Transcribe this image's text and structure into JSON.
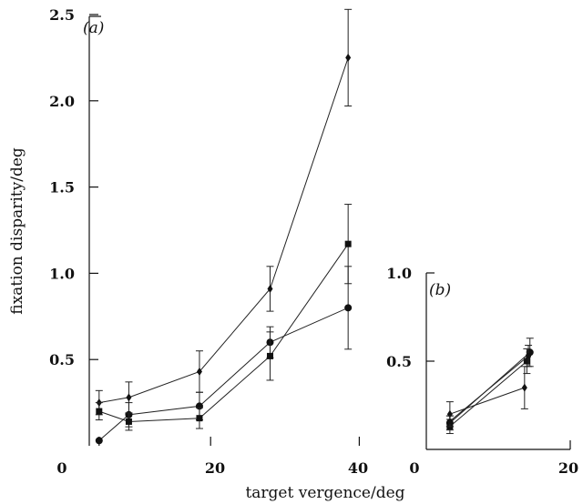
{
  "chart_data": [
    {
      "panel_label": "(a)",
      "type": "line",
      "ylabel": "fixation disparity/deg",
      "xlim": [
        0,
        45
      ],
      "ylim": [
        0,
        2.5
      ],
      "x_ticks": [
        0,
        20,
        40
      ],
      "y_ticks": [
        0.5,
        1.0,
        1.5,
        2.0,
        2.5
      ],
      "y_tick_labels": [
        "0.5",
        "1.0",
        "1.5",
        "2.0",
        "2.5"
      ],
      "series": [
        {
          "marker": "diamond",
          "points": [
            {
              "x": 5,
              "y": 0.25,
              "err": 0.07
            },
            {
              "x": 9,
              "y": 0.28,
              "err": 0.09
            },
            {
              "x": 18.5,
              "y": 0.43,
              "err": 0.12
            },
            {
              "x": 28,
              "y": 0.91,
              "err": 0.13
            },
            {
              "x": 38.5,
              "y": 2.25,
              "err": 0.28
            }
          ]
        },
        {
          "marker": "circle",
          "points": [
            {
              "x": 5,
              "y": 0.03,
              "err": 0.0
            },
            {
              "x": 9,
              "y": 0.18,
              "err": 0.07
            },
            {
              "x": 18.5,
              "y": 0.23,
              "err": 0.08
            },
            {
              "x": 28,
              "y": 0.6,
              "err": 0.09
            },
            {
              "x": 38.5,
              "y": 0.8,
              "err": 0.24
            }
          ]
        },
        {
          "marker": "square",
          "points": [
            {
              "x": 5,
              "y": 0.2,
              "err": 0.05
            },
            {
              "x": 9,
              "y": 0.14,
              "err": 0.05
            },
            {
              "x": 18.5,
              "y": 0.16,
              "err": 0.06
            },
            {
              "x": 28,
              "y": 0.52,
              "err": 0.14
            },
            {
              "x": 38.5,
              "y": 1.17,
              "err": 0.23
            }
          ]
        }
      ]
    },
    {
      "panel_label": "(b)",
      "type": "line",
      "xlim": [
        0,
        20
      ],
      "ylim": [
        0,
        1.0
      ],
      "x_ticks": [
        0,
        20
      ],
      "y_ticks": [
        0.5,
        1.0
      ],
      "y_tick_labels": [
        "0.5",
        "1.0"
      ],
      "series": [
        {
          "marker": "diamond",
          "points": [
            {
              "x": 4.6,
              "y": 0.2,
              "err": 0.07
            },
            {
              "x": 14.3,
              "y": 0.35,
              "err": 0.12
            }
          ]
        },
        {
          "marker": "circle",
          "points": [
            {
              "x": 4.6,
              "y": 0.15,
              "err": 0.04
            },
            {
              "x": 15.0,
              "y": 0.55,
              "err": 0.08
            }
          ]
        },
        {
          "marker": "square",
          "points": [
            {
              "x": 4.6,
              "y": 0.13,
              "err": 0.04
            },
            {
              "x": 14.6,
              "y": 0.5,
              "err": 0.07
            }
          ]
        },
        {
          "marker": "dot",
          "points": [
            {
              "x": 4.6,
              "y": 0.16,
              "err": 0.03
            },
            {
              "x": 14.8,
              "y": 0.53,
              "err": 0.06
            }
          ]
        }
      ]
    }
  ],
  "shared_x_label": "target vergence/deg",
  "tick_label_text": {
    "zero": "0",
    "twenty": "20",
    "forty": "40"
  }
}
